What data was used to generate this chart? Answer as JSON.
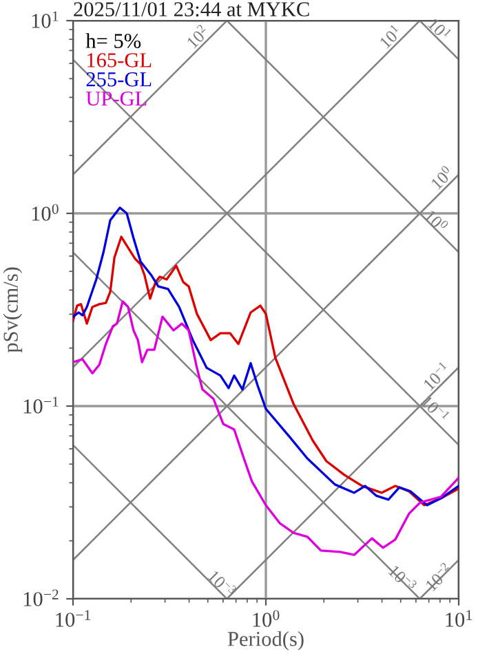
{
  "chart_data": {
    "type": "line",
    "title": "2025/11/01 23:44 at MYKC",
    "xlabel": "Period(s)",
    "ylabel": "pSv(cm/s)",
    "legend_title": "h= 5%",
    "legend": "top left",
    "log": "xy",
    "grid": true,
    "xlim": [
      0.1,
      10
    ],
    "ylim": [
      0.01,
      10
    ],
    "xticks": [
      {
        "value": 0.1,
        "label": "10$^{−1}$"
      },
      {
        "value": 1,
        "label": "10$^{0}$"
      },
      {
        "value": 10,
        "label": "10$^{1}$"
      }
    ],
    "yticks": [
      {
        "value": 0.01,
        "label": "10$^{−2}$"
      },
      {
        "value": 0.1,
        "label": "10$^{−1}$"
      },
      {
        "value": 1,
        "label": "10$^{0}$"
      },
      {
        "value": 10,
        "label": "10$^{1}$"
      }
    ],
    "series": [
      {
        "name": "165-GL",
        "color": "#dd0000",
        "x": [
          0.1,
          0.105,
          0.11,
          0.118,
          0.126,
          0.137,
          0.148,
          0.156,
          0.164,
          0.178,
          0.193,
          0.21,
          0.224,
          0.235,
          0.251,
          0.268,
          0.282,
          0.306,
          0.343,
          0.373,
          0.398,
          0.439,
          0.518,
          0.581,
          0.652,
          0.72,
          0.834,
          0.936,
          1.0,
          1.12,
          1.39,
          1.75,
          2.06,
          2.55,
          3.16,
          3.98,
          4.69,
          5.53,
          6.63,
          8.08,
          10
        ],
        "values": [
          0.277,
          0.332,
          0.338,
          0.268,
          0.327,
          0.338,
          0.343,
          0.392,
          0.591,
          0.756,
          0.663,
          0.581,
          0.544,
          0.477,
          0.361,
          0.44,
          0.469,
          0.454,
          0.535,
          0.44,
          0.418,
          0.301,
          0.22,
          0.239,
          0.239,
          0.21,
          0.306,
          0.332,
          0.301,
          0.178,
          0.103,
          0.0663,
          0.0518,
          0.044,
          0.0385,
          0.0355,
          0.0385,
          0.0361,
          0.0306,
          0.0332,
          0.0373
        ]
      },
      {
        "name": "255-GL",
        "color": "#0000dd",
        "x": [
          0.1,
          0.107,
          0.112,
          0.118,
          0.132,
          0.144,
          0.156,
          0.175,
          0.19,
          0.206,
          0.224,
          0.255,
          0.277,
          0.311,
          0.355,
          0.418,
          0.493,
          0.581,
          0.641,
          0.685,
          0.756,
          0.834,
          0.906,
          1.0,
          1.32,
          1.64,
          2.28,
          2.87,
          3.27,
          3.73,
          4.32,
          4.93,
          5.62,
          6.85,
          8.08,
          10
        ],
        "values": [
          0.291,
          0.306,
          0.296,
          0.327,
          0.454,
          0.631,
          0.921,
          1.07,
          1.0,
          0.744,
          0.562,
          0.477,
          0.418,
          0.405,
          0.327,
          0.22,
          0.158,
          0.144,
          0.124,
          0.144,
          0.122,
          0.167,
          0.128,
          0.0968,
          0.0697,
          0.0535,
          0.0392,
          0.0355,
          0.0385,
          0.0343,
          0.0327,
          0.0379,
          0.0361,
          0.0306,
          0.0332,
          0.0385
        ]
      },
      {
        "name": "UP-GL",
        "color": "#dd00dd",
        "x": [
          0.1,
          0.112,
          0.126,
          0.137,
          0.148,
          0.161,
          0.169,
          0.181,
          0.193,
          0.206,
          0.217,
          0.228,
          0.243,
          0.264,
          0.291,
          0.311,
          0.332,
          0.367,
          0.398,
          0.439,
          0.469,
          0.535,
          0.601,
          0.685,
          0.769,
          0.848,
          1.0,
          1.18,
          1.39,
          1.64,
          1.93,
          2.43,
          2.87,
          3.55,
          4.05,
          4.69,
          5.53,
          6.31,
          8.08,
          10
        ],
        "values": [
          0.169,
          0.175,
          0.148,
          0.164,
          0.21,
          0.26,
          0.268,
          0.349,
          0.327,
          0.247,
          0.22,
          0.169,
          0.196,
          0.196,
          0.291,
          0.268,
          0.247,
          0.268,
          0.247,
          0.158,
          0.122,
          0.109,
          0.0808,
          0.0756,
          0.0535,
          0.0405,
          0.0306,
          0.0247,
          0.022,
          0.021,
          0.0178,
          0.0175,
          0.0169,
          0.0206,
          0.0184,
          0.0203,
          0.0277,
          0.0316,
          0.0338,
          0.0425
        ]
      },
      {
        "color": "#808080",
        "x": [
          0.1,
          0.628
        ],
        "values": [
          1.59,
          10
        ]
      },
      {
        "color": "#808080",
        "x": [
          0.1,
          6.28
        ],
        "values": [
          0.159,
          10
        ]
      },
      {
        "color": "#808080",
        "x": [
          0.1,
          10
        ],
        "values": [
          0.0159,
          1.59
        ]
      },
      {
        "color": "#808080",
        "x": [
          0.628,
          10
        ],
        "values": [
          0.01,
          0.159
        ]
      },
      {
        "color": "#808080",
        "x": [
          6.28,
          10
        ],
        "values": [
          0.01,
          0.0159
        ]
      },
      {
        "color": "#808080",
        "x": [
          6.28,
          10
        ],
        "values": [
          10,
          6.28
        ]
      },
      {
        "color": "#808080",
        "x": [
          0.628,
          10
        ],
        "values": [
          10,
          0.628
        ]
      },
      {
        "color": "#808080",
        "x": [
          0.1,
          10
        ],
        "values": [
          6.28,
          0.0628
        ]
      },
      {
        "color": "#808080",
        "x": [
          0.1,
          6.28
        ],
        "values": [
          0.628,
          0.01
        ]
      },
      {
        "color": "#808080",
        "x": [
          0.1,
          0.628
        ],
        "values": [
          0.0628,
          0.01
        ]
      }
    ],
    "annotations": [
      {
        "text": "10$^{2}$",
        "x": 0.45,
        "y": 8.1
      },
      {
        "text": "10$^{1}$",
        "x": 4.5,
        "y": 8.1
      },
      {
        "text": "10$^{1}$",
        "x": 7.8,
        "y": 8.9
      },
      {
        "text": "10$^{0}$",
        "x": 8.3,
        "y": 1.5
      },
      {
        "text": "10$^{0}$",
        "x": 7.5,
        "y": 0.9
      },
      {
        "text": "10$^{−1}$",
        "x": 7.8,
        "y": 0.14
      },
      {
        "text": "10$^{−1}$",
        "x": 7.4,
        "y": 0.095
      },
      {
        "text": "10$^{−3}$",
        "x": 0.58,
        "y": 0.0118
      },
      {
        "text": "10$^{−3}$",
        "x": 5.0,
        "y": 0.01256
      },
      {
        "text": "10$^{−2}$",
        "x": 8.0,
        "y": 0.0127
      }
    ]
  }
}
